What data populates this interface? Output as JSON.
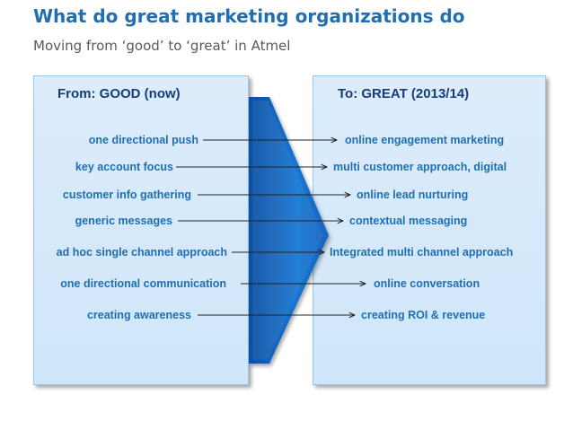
{
  "title": "What do great marketing organizations do",
  "subtitle": "Moving from ‘good’ to ‘great’ in Atmel",
  "from_header": "From: GOOD (now)",
  "to_header": "To: GREAT (2013/14)",
  "rows": [
    {
      "from": "one directional push",
      "to": "online engagement marketing"
    },
    {
      "from": "key account focus",
      "to": "multi customer approach, digital"
    },
    {
      "from": "customer info gathering",
      "to": "online lead nurturing"
    },
    {
      "from": "generic messages",
      "to": "contextual messaging"
    },
    {
      "from": "ad hoc single channel approach",
      "to": "Integrated multi channel approach"
    },
    {
      "from": "one directional communication",
      "to": "online conversation"
    },
    {
      "from": "creating awareness",
      "to": "creating ROI & revenue"
    }
  ],
  "colors": {
    "title": "#1f6fb2",
    "panel_fill": "#dcecfb",
    "chevron": "#1565c0",
    "item_text": "#1f6fb2",
    "header_text": "#1a3d7a"
  }
}
